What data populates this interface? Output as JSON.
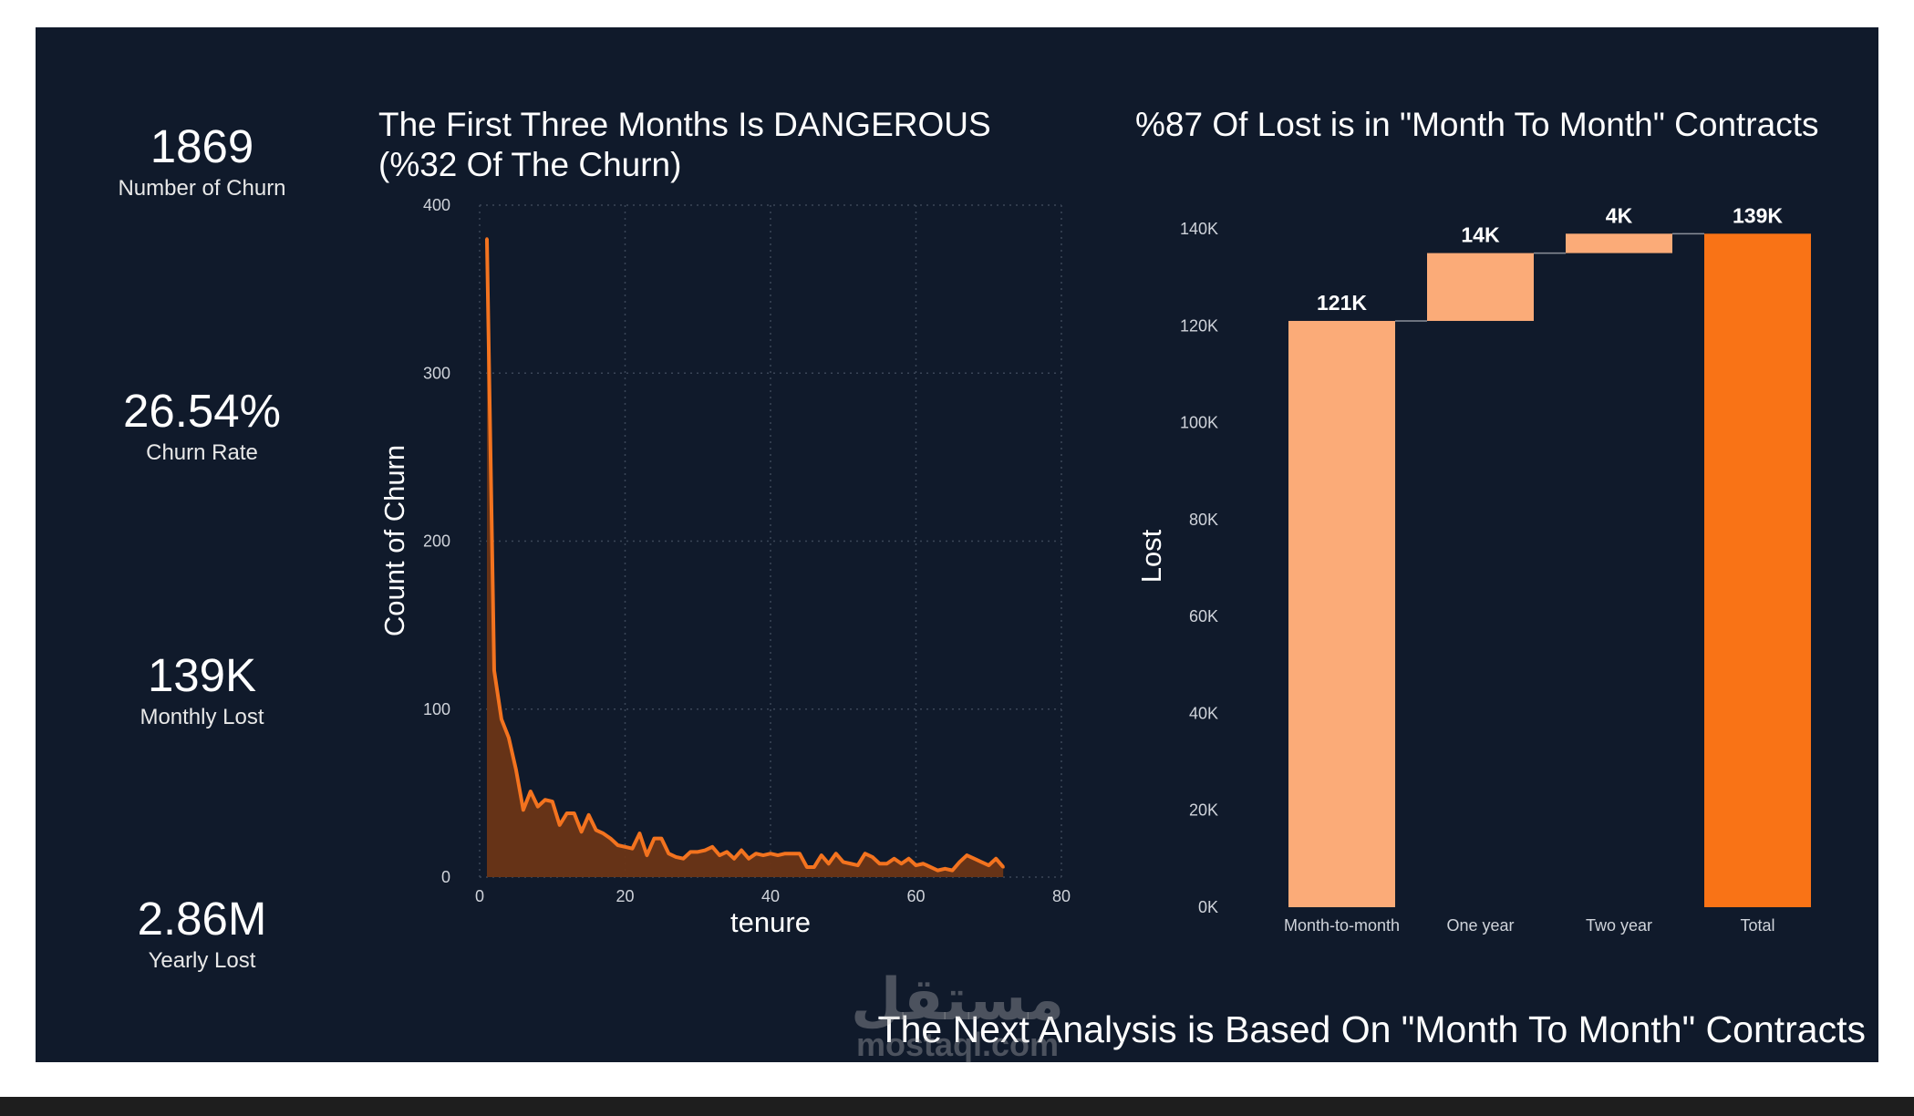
{
  "kpis": [
    {
      "value": "1869",
      "label": "Number of Churn"
    },
    {
      "value": "26.54%",
      "label": "Churn Rate"
    },
    {
      "value": "139K",
      "label": "Monthly Lost"
    },
    {
      "value": "2.86M",
      "label": "Yearly Lost"
    }
  ],
  "footer_text": "The Next Analysis is Based On \"Month To Month\" Contracts",
  "watermark": {
    "arabic": "مستقل",
    "latin": "mostaql.com"
  },
  "colors": {
    "background": "#101a2b",
    "line": "#f3731f",
    "area": "#6b3516",
    "bar_light": "#fbab78",
    "bar_total": "#f97316"
  },
  "chart_data": [
    {
      "type": "area",
      "title_line1": "The First Three Months Is DANGEROUS",
      "title_line2": "(%32 Of The Churn)",
      "xlabel": "tenure",
      "ylabel": "Count of Churn",
      "xlim": [
        0,
        80
      ],
      "ylim": [
        0,
        400
      ],
      "xticks": [
        "0",
        "20",
        "40",
        "60",
        "80"
      ],
      "yticks": [
        "0",
        "100",
        "200",
        "300",
        "400"
      ],
      "grid": true,
      "x": [
        1,
        2,
        3,
        4,
        5,
        6,
        7,
        8,
        9,
        10,
        11,
        12,
        13,
        14,
        15,
        16,
        17,
        18,
        19,
        20,
        21,
        22,
        23,
        24,
        25,
        26,
        27,
        28,
        29,
        30,
        31,
        32,
        33,
        34,
        35,
        36,
        37,
        38,
        39,
        40,
        41,
        42,
        43,
        44,
        45,
        46,
        47,
        48,
        49,
        50,
        51,
        52,
        53,
        54,
        55,
        56,
        57,
        58,
        59,
        60,
        61,
        62,
        63,
        64,
        65,
        66,
        67,
        68,
        69,
        70,
        71,
        72
      ],
      "y": [
        380,
        123,
        94,
        83,
        64,
        40,
        51,
        42,
        46,
        45,
        31,
        38,
        38,
        27,
        37,
        28,
        26,
        23,
        19,
        18,
        17,
        26,
        13,
        23,
        23,
        14,
        12,
        11,
        15,
        15,
        16,
        18,
        13,
        15,
        11,
        16,
        11,
        14,
        13,
        14,
        13,
        14,
        14,
        14,
        6,
        6,
        13,
        8,
        14,
        9,
        8,
        7,
        14,
        12,
        8,
        8,
        11,
        8,
        11,
        7,
        8,
        6,
        4,
        5,
        4,
        9,
        13,
        11,
        9,
        7,
        11,
        6
      ]
    },
    {
      "type": "bar",
      "subtype": "waterfall",
      "title": "%87 Of Lost is in \"Month To Month\" Contracts",
      "xlabel": "",
      "ylabel": "Lost",
      "categories": [
        "Month-to-month",
        "One year",
        "Two year",
        "Total"
      ],
      "values": [
        121000,
        14000,
        4000,
        139000
      ],
      "value_labels": [
        "121K",
        "14K",
        "4K",
        "139K"
      ],
      "ylim": [
        0,
        140000
      ],
      "yticks": [
        "0K",
        "20K",
        "40K",
        "60K",
        "80K",
        "100K",
        "120K",
        "140K"
      ],
      "grid": false
    }
  ]
}
